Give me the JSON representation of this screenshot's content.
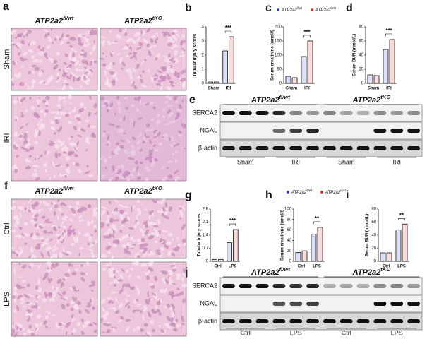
{
  "panel_labels": [
    "a",
    "b",
    "c",
    "d",
    "e",
    "f",
    "g",
    "h",
    "i",
    "j"
  ],
  "genotypes": [
    {
      "base": "ATP2a2",
      "sup": "fl/wt"
    },
    {
      "base": "ATP2a2",
      "sup": "tKO"
    }
  ],
  "histology": [
    {
      "rows": [
        "Sham",
        "IRI"
      ]
    },
    {
      "rows": [
        "Ctrl",
        "LPS"
      ]
    }
  ],
  "blots": [
    {
      "rows": [
        "SERCA2",
        "NGAL",
        "β-actin"
      ],
      "groups": [
        "Sham",
        "IRI",
        "Sham",
        "IRI"
      ]
    },
    {
      "rows": [
        "SERCA2",
        "NGAL",
        "β-actin"
      ],
      "groups": [
        "Ctrl",
        "LPS",
        "Ctrl",
        "LPS"
      ]
    }
  ],
  "chart_data": [
    {
      "type": "bar",
      "y_label": "Tubular injury scores",
      "categories": [
        "Sham",
        "IRI"
      ],
      "series": [
        {
          "color": "#3b4fe0",
          "values": [
            0.1,
            2.3
          ]
        },
        {
          "color": "#e53935",
          "values": [
            0.1,
            3.3
          ]
        }
      ],
      "ylim": [
        0,
        4
      ],
      "yticks": [
        0,
        1,
        2,
        3,
        4
      ],
      "significance": "***"
    },
    {
      "type": "bar",
      "y_label": "Serum creatinine (umol/l)",
      "categories": [
        "Sham",
        "IRI"
      ],
      "series": [
        {
          "name": "ATP2a2",
          "name_sup": "fl/wt",
          "color": "#3b4fe0",
          "values": [
            25,
            95
          ]
        },
        {
          "name": "ATP2a2",
          "name_sup": "tKO",
          "color": "#e53935",
          "values": [
            20,
            150
          ]
        }
      ],
      "ylim": [
        0,
        200
      ],
      "yticks": [
        0,
        50,
        100,
        150,
        200
      ],
      "significance": "***"
    },
    {
      "type": "bar",
      "y_label": "Serum BUN (mmol/L)",
      "categories": [
        "Sham",
        "IRI"
      ],
      "series": [
        {
          "color": "#3b4fe0",
          "values": [
            12,
            48
          ]
        },
        {
          "color": "#e53935",
          "values": [
            11,
            62
          ]
        }
      ],
      "ylim": [
        0,
        80
      ],
      "yticks": [
        0,
        20,
        40,
        60,
        80
      ],
      "significance": "***"
    },
    {
      "type": "bar",
      "y_label": "Tubular injury scores",
      "categories": [
        "Ctrl",
        "LPS"
      ],
      "series": [
        {
          "color": "#3b4fe0",
          "values": [
            0.1,
            1.0
          ]
        },
        {
          "color": "#e53935",
          "values": [
            0.1,
            1.7
          ]
        }
      ],
      "ylim": [
        0,
        2.8
      ],
      "yticks": [
        0,
        0.7,
        1.4,
        2.1,
        2.8
      ],
      "significance": "***"
    },
    {
      "type": "bar",
      "y_label": "Serum creatinine (umol/l)",
      "categories": [
        "Ctrl",
        "LPS"
      ],
      "series": [
        {
          "name": "ATP2a2",
          "name_sup": "fl/wt",
          "color": "#3b4fe0",
          "values": [
            17,
            52
          ]
        },
        {
          "name": "ATP2a2",
          "name_sup": "tKO",
          "color": "#e53935",
          "values": [
            20,
            65
          ]
        }
      ],
      "ylim": [
        0,
        100
      ],
      "yticks": [
        0,
        20,
        40,
        60,
        80,
        100
      ],
      "significance": "**"
    },
    {
      "type": "bar",
      "y_label": "Serum BUN (mmol/L)",
      "categories": [
        "Ctrl",
        "LPS"
      ],
      "series": [
        {
          "color": "#3b4fe0",
          "values": [
            13,
            48
          ]
        },
        {
          "color": "#e53935",
          "values": [
            13,
            57
          ]
        }
      ],
      "ylim": [
        0,
        80
      ],
      "yticks": [
        0,
        20,
        40,
        60,
        80
      ],
      "significance": "**"
    }
  ]
}
